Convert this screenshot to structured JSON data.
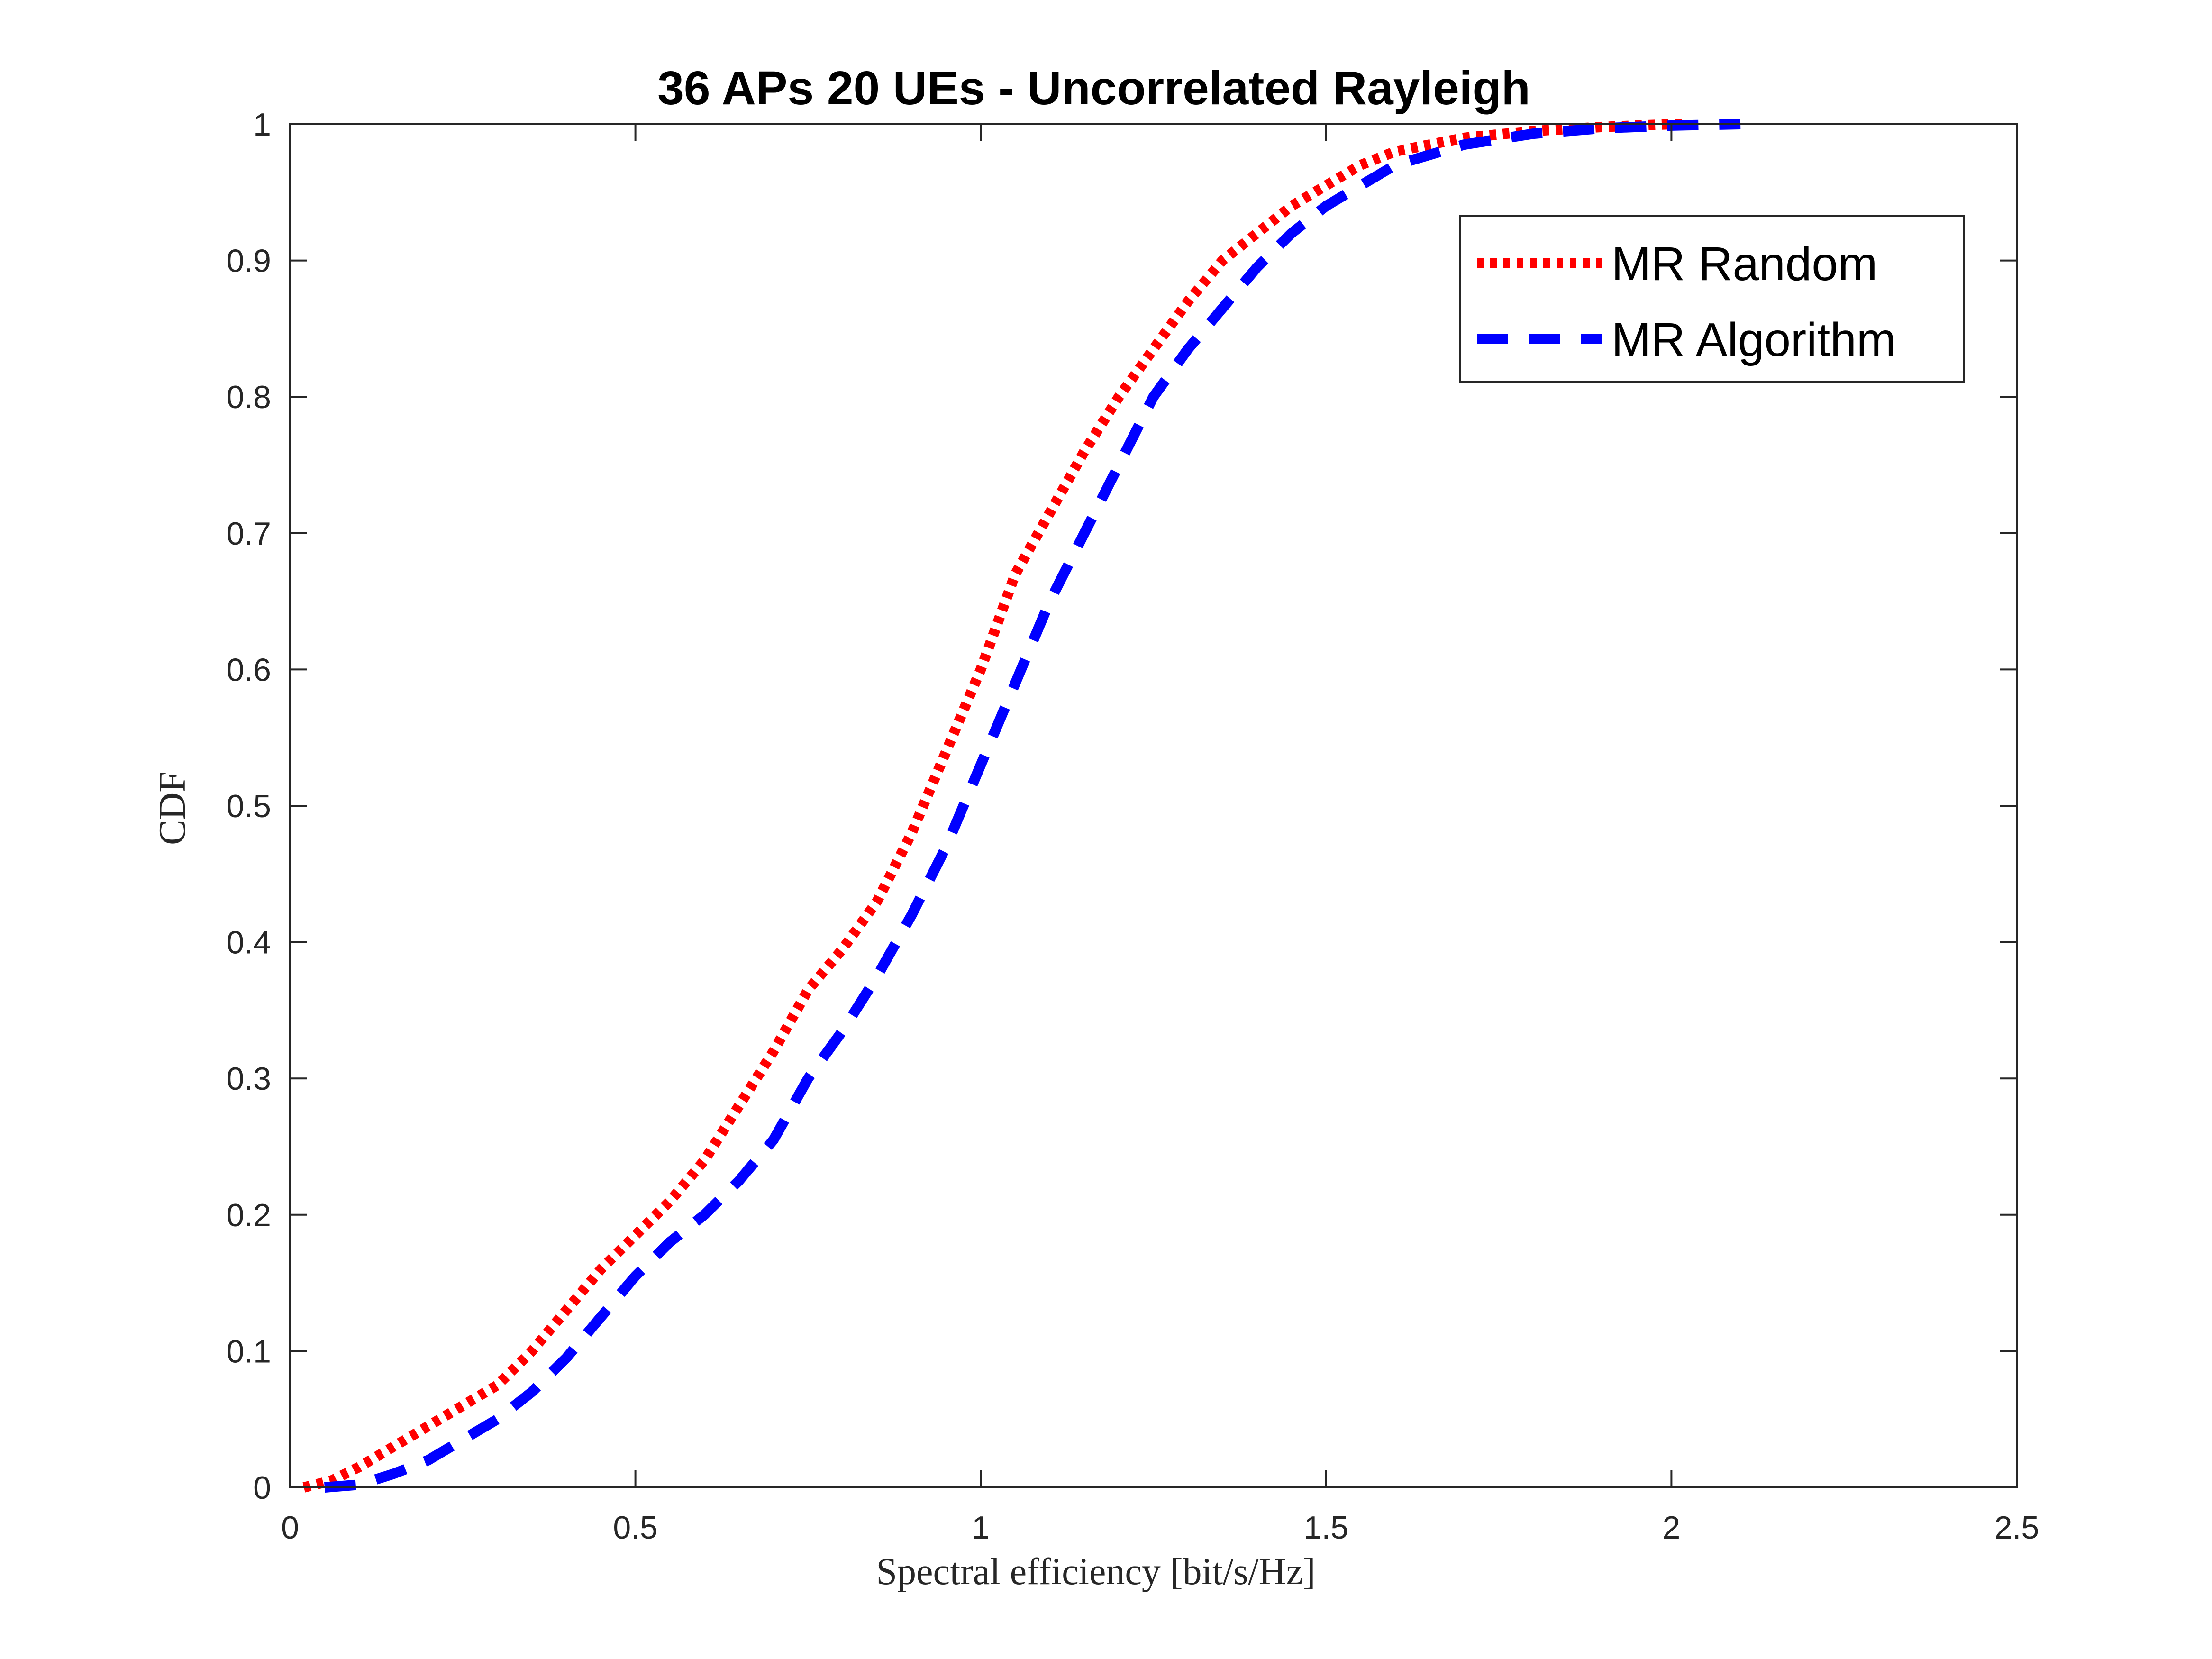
{
  "chart_data": {
    "type": "line",
    "title": "36 APs 20 UEs - Uncorrelated Rayleigh",
    "xlabel": "Spectral efficiency [bit/s/Hz]",
    "ylabel": "CDF",
    "xlim": [
      0,
      2.5
    ],
    "ylim": [
      0,
      1
    ],
    "xticks": [
      "0",
      "0.5",
      "1",
      "1.5",
      "2",
      "2.5"
    ],
    "yticks": [
      "0",
      "0.1",
      "0.2",
      "0.3",
      "0.4",
      "0.5",
      "0.6",
      "0.7",
      "0.8",
      "0.9",
      "1"
    ],
    "grid": false,
    "legend_position": "top-right",
    "series": [
      {
        "name": "MR Random",
        "color": "#ff0000",
        "style": "dotted",
        "x": [
          0.02,
          0.06,
          0.1,
          0.15,
          0.2,
          0.25,
          0.3,
          0.35,
          0.4,
          0.45,
          0.5,
          0.55,
          0.6,
          0.65,
          0.7,
          0.75,
          0.8,
          0.85,
          0.9,
          0.95,
          1.0,
          1.05,
          1.1,
          1.15,
          1.2,
          1.25,
          1.3,
          1.35,
          1.4,
          1.45,
          1.5,
          1.55,
          1.6,
          1.7,
          1.8,
          1.9,
          2.0,
          2.02
        ],
        "y": [
          0.0,
          0.005,
          0.015,
          0.03,
          0.045,
          0.06,
          0.075,
          0.1,
          0.13,
          0.16,
          0.185,
          0.21,
          0.24,
          0.28,
          0.32,
          0.365,
          0.395,
          0.43,
          0.48,
          0.54,
          0.6,
          0.67,
          0.715,
          0.76,
          0.8,
          0.835,
          0.87,
          0.9,
          0.92,
          0.94,
          0.955,
          0.97,
          0.98,
          0.99,
          0.995,
          0.998,
          1.0,
          1.0
        ]
      },
      {
        "name": "MR Algorithm",
        "color": "#0000ff",
        "style": "dashed",
        "x": [
          0.05,
          0.1,
          0.15,
          0.2,
          0.25,
          0.3,
          0.35,
          0.4,
          0.45,
          0.5,
          0.55,
          0.6,
          0.65,
          0.7,
          0.75,
          0.8,
          0.85,
          0.9,
          0.95,
          1.0,
          1.05,
          1.1,
          1.15,
          1.2,
          1.25,
          1.3,
          1.35,
          1.4,
          1.45,
          1.5,
          1.55,
          1.6,
          1.7,
          1.8,
          1.9,
          2.0,
          2.1
        ],
        "y": [
          0.0,
          0.002,
          0.01,
          0.02,
          0.035,
          0.05,
          0.07,
          0.095,
          0.125,
          0.155,
          0.18,
          0.2,
          0.225,
          0.255,
          0.3,
          0.335,
          0.375,
          0.42,
          0.47,
          0.53,
          0.59,
          0.65,
          0.7,
          0.75,
          0.8,
          0.835,
          0.865,
          0.895,
          0.92,
          0.94,
          0.955,
          0.97,
          0.985,
          0.993,
          0.997,
          0.999,
          1.0
        ]
      }
    ]
  }
}
